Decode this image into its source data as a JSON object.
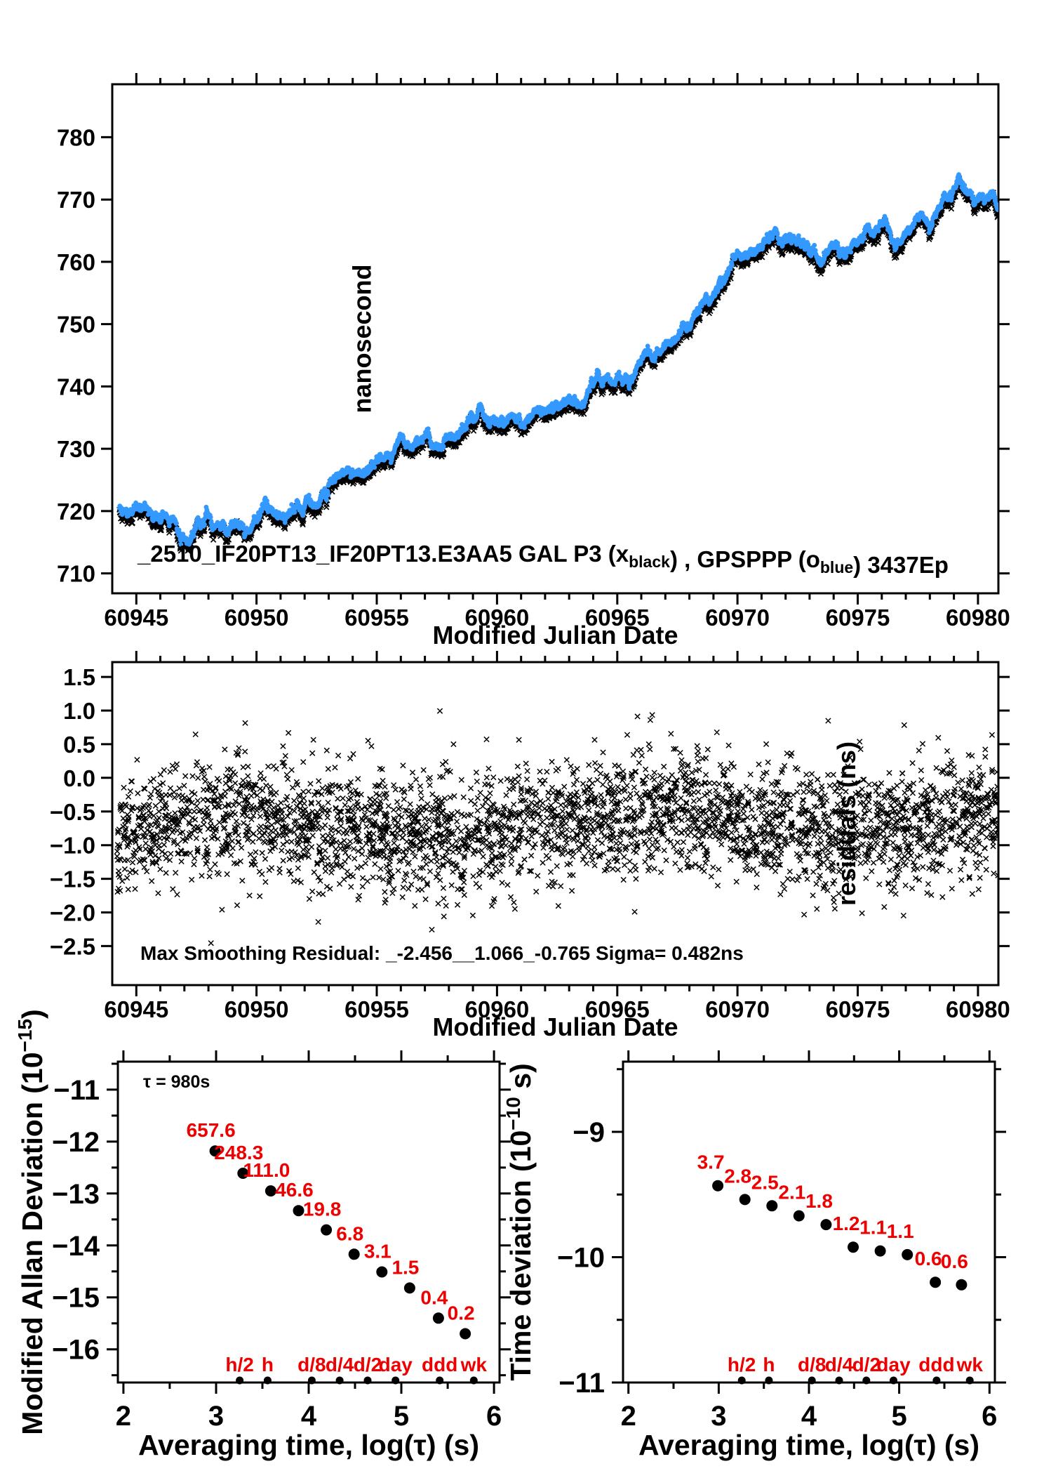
{
  "figure": {
    "colors": {
      "black": "#000000",
      "blue": "#3399ff",
      "red": "#ee0000",
      "background": "#ffffff"
    }
  },
  "chart_data": [
    {
      "id": "time-series-panel",
      "type": "scatter",
      "title_parts": [
        {
          "t": "_2510_IF20PT13_IF20PT13.E3AA5    GAL P3 (x"
        },
        {
          "t": "black",
          "sub": true
        },
        {
          "t": ") ,  GPSPPP (o"
        },
        {
          "t": "blue",
          "sub": true
        },
        {
          "t": ")  3437Ep"
        }
      ],
      "xlabel": "Modified Julian Date",
      "ylabel": "nanosecond",
      "xlim": [
        60944.0,
        60980.85
      ],
      "ylim": [
        706.8,
        788.5
      ],
      "xticks": [
        {
          "v": 60945,
          "label": "60945"
        },
        {
          "v": 60950,
          "label": "60950"
        },
        {
          "v": 60955,
          "label": "60955"
        },
        {
          "v": 60960,
          "label": "60960"
        },
        {
          "v": 60965,
          "label": "60965"
        },
        {
          "v": 60970,
          "label": "60970"
        },
        {
          "v": 60975,
          "label": "60975"
        },
        {
          "v": 60980,
          "label": "60980"
        }
      ],
      "xtick_minor_step": 1,
      "yticks": [
        {
          "v": 710,
          "label": "710"
        },
        {
          "v": 720,
          "label": "720"
        },
        {
          "v": 730,
          "label": "730"
        },
        {
          "v": 740,
          "label": "740"
        },
        {
          "v": 750,
          "label": "750"
        },
        {
          "v": 760,
          "label": "760"
        },
        {
          "v": 770,
          "label": "770"
        },
        {
          "v": 780,
          "label": "780"
        }
      ],
      "series": [
        {
          "name": "GAL P3",
          "marker": "x",
          "color": "#000000",
          "offset_ns": 0.0
        },
        {
          "name": "GPSPPP",
          "marker": "o",
          "color": "#3399ff",
          "offset_ns": 0.92
        }
      ],
      "trend_anchors": [
        [
          60944.3,
          719.4
        ],
        [
          60944.8,
          719.0
        ],
        [
          60945.3,
          719.3
        ],
        [
          60945.9,
          719.0
        ],
        [
          60946.2,
          717.6
        ],
        [
          60946.5,
          718.2
        ],
        [
          60947.0,
          714.8
        ],
        [
          60947.25,
          713.7
        ],
        [
          60947.6,
          716.2
        ],
        [
          60948.0,
          718.4
        ],
        [
          60948.35,
          717.2
        ],
        [
          60948.85,
          715.6
        ],
        [
          60949.2,
          716.3
        ],
        [
          60949.6,
          715.4
        ],
        [
          60950.0,
          717.5
        ],
        [
          60950.35,
          720.2
        ],
        [
          60950.7,
          719.0
        ],
        [
          60951.1,
          717.9
        ],
        [
          60951.5,
          719.2
        ],
        [
          60951.9,
          719.8
        ],
        [
          60952.2,
          721.4
        ],
        [
          60952.55,
          720.7
        ],
        [
          60953.0,
          722.2
        ],
        [
          60953.65,
          726.4
        ],
        [
          60954.1,
          725.1
        ],
        [
          60954.5,
          724.2
        ],
        [
          60954.9,
          726.0
        ],
        [
          60955.2,
          728.4
        ],
        [
          60955.6,
          727.6
        ],
        [
          60955.95,
          730.8
        ],
        [
          60956.3,
          729.2
        ],
        [
          60956.7,
          730.2
        ],
        [
          60957.1,
          730.6
        ],
        [
          60957.5,
          729.3
        ],
        [
          60957.9,
          730.5
        ],
        [
          60958.3,
          732.0
        ],
        [
          60958.8,
          733.9
        ],
        [
          60959.3,
          735.8
        ],
        [
          60959.7,
          734.1
        ],
        [
          60960.0,
          733.6
        ],
        [
          60960.5,
          735.0
        ],
        [
          60961.0,
          734.0
        ],
        [
          60961.6,
          733.9
        ],
        [
          60962.2,
          736.4
        ],
        [
          60962.6,
          735.9
        ],
        [
          60963.0,
          736.9
        ],
        [
          60963.3,
          735.6
        ],
        [
          60963.8,
          738.2
        ],
        [
          60964.2,
          740.9
        ],
        [
          60964.7,
          739.9
        ],
        [
          60965.1,
          740.6
        ],
        [
          60965.45,
          740.0
        ],
        [
          60965.9,
          742.6
        ],
        [
          60966.3,
          744.6
        ],
        [
          60966.65,
          744.1
        ],
        [
          60967.1,
          746.6
        ],
        [
          60967.45,
          746.1
        ],
        [
          60968.0,
          749.6
        ],
        [
          60968.4,
          751.6
        ],
        [
          60968.9,
          753.6
        ],
        [
          60969.3,
          756.1
        ],
        [
          60969.8,
          758.6
        ],
        [
          60970.3,
          760.6
        ],
        [
          60970.7,
          760.1
        ],
        [
          60971.2,
          762.1
        ],
        [
          60971.7,
          763.6
        ],
        [
          60972.1,
          763.9
        ],
        [
          60972.5,
          762.6
        ],
        [
          60973.0,
          760.9
        ],
        [
          60973.4,
          760.4
        ],
        [
          60974.0,
          761.1
        ],
        [
          60974.45,
          760.8
        ],
        [
          60974.9,
          762.1
        ],
        [
          60975.3,
          763.6
        ],
        [
          60975.8,
          765.6
        ],
        [
          60976.2,
          764.6
        ],
        [
          60976.7,
          762.9
        ],
        [
          60977.1,
          763.6
        ],
        [
          60977.6,
          766.1
        ],
        [
          60978.0,
          765.6
        ],
        [
          60978.5,
          768.6
        ],
        [
          60979.0,
          771.6
        ],
        [
          60979.35,
          770.6
        ],
        [
          60979.9,
          768.9
        ],
        [
          60980.2,
          770.0
        ],
        [
          60980.5,
          769.4
        ],
        [
          60980.85,
          768.3
        ]
      ]
    },
    {
      "id": "residuals-panel",
      "type": "scatter",
      "xlabel": "Modified Julian Date",
      "ylabel": "residuals (ns)",
      "xlim": [
        60944.0,
        60980.85
      ],
      "ylim": [
        -3.08,
        1.72
      ],
      "xticks": [
        {
          "v": 60945,
          "label": "60945"
        },
        {
          "v": 60950,
          "label": "60950"
        },
        {
          "v": 60955,
          "label": "60955"
        },
        {
          "v": 60960,
          "label": "60960"
        },
        {
          "v": 60965,
          "label": "60965"
        },
        {
          "v": 60970,
          "label": "60970"
        },
        {
          "v": 60975,
          "label": "60975"
        },
        {
          "v": 60980,
          "label": "60980"
        }
      ],
      "xtick_minor_step": 1,
      "yticks": [
        {
          "v": 1.5,
          "label": "1.5"
        },
        {
          "v": 1.0,
          "label": "1.0"
        },
        {
          "v": 0.5,
          "label": "0.5"
        },
        {
          "v": 0.0,
          "label": "0.0"
        },
        {
          "v": -0.5,
          "label": "−0.5"
        },
        {
          "v": -1.0,
          "label": "−1.0"
        },
        {
          "v": -1.5,
          "label": "−1.5"
        },
        {
          "v": -2.0,
          "label": "−2.0"
        },
        {
          "v": -2.5,
          "label": "−2.5"
        }
      ],
      "annotation": "Max Smoothing Residual: _-2.456__1.066_-0.765  Sigma= 0.482ns",
      "stats": {
        "min_ns": -2.456,
        "max_ns": 1.066,
        "last_ns": -0.765,
        "sigma_ns": 0.482
      },
      "cloud": {
        "n_points": 3400,
        "mean_ns": -0.8,
        "sd_ns": 0.46
      }
    },
    {
      "id": "mdev-panel",
      "type": "scatter",
      "ylabel_parts": {
        "pre": "Modified Allan Deviation (10",
        "sup": "−15",
        "post": ")"
      },
      "xlabel": "Averaging time, log(τ) (s)",
      "annotation": "τ = 980s",
      "xlim": [
        1.94,
        6.06
      ],
      "ylim": [
        -16.64,
        -10.46
      ],
      "xticks": [
        {
          "v": 2,
          "label": "2"
        },
        {
          "v": 3,
          "label": "3"
        },
        {
          "v": 4,
          "label": "4"
        },
        {
          "v": 5,
          "label": "5"
        },
        {
          "v": 6,
          "label": "6"
        }
      ],
      "xminors": [
        2.5,
        3.5,
        4.5,
        5.5
      ],
      "yticks": [
        {
          "v": -11,
          "label": "−11"
        },
        {
          "v": -12,
          "label": "−12"
        },
        {
          "v": -13,
          "label": "−13"
        },
        {
          "v": -14,
          "label": "−14"
        },
        {
          "v": -15,
          "label": "−15"
        },
        {
          "v": -16,
          "label": "−16"
        }
      ],
      "yminors": [
        -10.5,
        -11.5,
        -12.5,
        -13.5,
        -14.5,
        -15.5,
        -16.5
      ],
      "points_x_logtau": [
        2.99,
        3.29,
        3.59,
        3.89,
        4.19,
        4.49,
        4.79,
        5.09,
        5.4,
        5.69
      ],
      "points_y_log": [
        -12.18,
        -12.61,
        -12.95,
        -13.33,
        -13.7,
        -14.17,
        -14.51,
        -14.82,
        -15.4,
        -15.7
      ],
      "point_labels": [
        "657.6",
        "248.3",
        "111.0",
        "46.6",
        "19.8",
        "6.8",
        "3.1",
        "1.5",
        "0.4",
        "0.2"
      ],
      "tau_markers": [
        {
          "label": "h/2",
          "x": 3.255
        },
        {
          "label": "h",
          "x": 3.556
        },
        {
          "label": "d/8",
          "x": 4.033
        },
        {
          "label": "d/4",
          "x": 4.334
        },
        {
          "label": "d/2",
          "x": 4.636
        },
        {
          "label": "day",
          "x": 4.937
        },
        {
          "label": "ddd",
          "x": 5.414
        },
        {
          "label": "wk",
          "x": 5.782
        }
      ]
    },
    {
      "id": "tdev-panel",
      "type": "scatter",
      "ylabel_parts": {
        "pre": "Time deviation (10",
        "sup": "−10",
        "post": " s)"
      },
      "xlabel": "Averaging time, log(τ) (s)",
      "xlim": [
        1.94,
        6.06
      ],
      "ylim": [
        -11.0,
        -8.44
      ],
      "xticks": [
        {
          "v": 2,
          "label": "2"
        },
        {
          "v": 3,
          "label": "3"
        },
        {
          "v": 4,
          "label": "4"
        },
        {
          "v": 5,
          "label": "5"
        },
        {
          "v": 6,
          "label": "6"
        }
      ],
      "xminors": [
        2.5,
        3.5,
        4.5,
        5.5
      ],
      "yticks": [
        {
          "v": -9,
          "label": "−9"
        },
        {
          "v": -10,
          "label": "−10"
        },
        {
          "v": -11,
          "label": "−11"
        }
      ],
      "yminors": [
        -8.5,
        -9.5,
        -10.5
      ],
      "points_x_logtau": [
        2.99,
        3.29,
        3.59,
        3.89,
        4.19,
        4.49,
        4.79,
        5.09,
        5.4,
        5.69
      ],
      "points_y_log": [
        -9.43,
        -9.54,
        -9.59,
        -9.67,
        -9.74,
        -9.92,
        -9.95,
        -9.98,
        -10.2,
        -10.22
      ],
      "point_labels": [
        "3.7",
        "2.8",
        "2.5",
        "2.1",
        "1.8",
        "1.2",
        "1.1",
        "1.1",
        "0.6",
        "0.6"
      ],
      "tau_markers": [
        {
          "label": "h/2",
          "x": 3.255
        },
        {
          "label": "h",
          "x": 3.556
        },
        {
          "label": "d/8",
          "x": 4.033
        },
        {
          "label": "d/4",
          "x": 4.334
        },
        {
          "label": "d/2",
          "x": 4.636
        },
        {
          "label": "day",
          "x": 4.937
        },
        {
          "label": "ddd",
          "x": 5.414
        },
        {
          "label": "wk",
          "x": 5.782
        }
      ]
    }
  ]
}
